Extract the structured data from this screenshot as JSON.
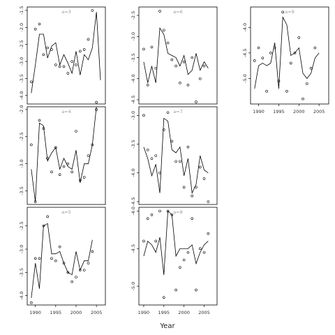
{
  "figure": {
    "xlabel": "Year"
  },
  "colors": {
    "line": "#000000",
    "point": "#000000",
    "frame": "#000000",
    "title": "#999999"
  },
  "chart_data": [
    {
      "type": "line",
      "title": "a=3",
      "xlabel": "",
      "ylabel": "",
      "x": [
        1989,
        1990,
        1991,
        1992,
        1993,
        1994,
        1995,
        1996,
        1997,
        1998,
        1999,
        2000,
        2001,
        2002,
        2003,
        2004,
        2005,
        2006
      ],
      "xlim": [
        1988.0,
        2007.2
      ],
      "ylim": [
        -4.25,
        -1.4
      ],
      "yticks": [
        -1.5,
        -2.0,
        -2.5,
        -3.0,
        -3.5,
        -4.0
      ],
      "xticks": [],
      "series": [
        {
          "values": [
            -3.93,
            -3.1,
            -2.2,
            -2.2,
            -2.9,
            -2.55,
            -2.45,
            -3.1,
            -2.8,
            -3.05,
            -3.35,
            -2.7,
            -3.4,
            -2.8,
            -2.95,
            -2.6,
            -1.55,
            -3.55
          ],
          "points": [
            -3.6,
            -2.05,
            -1.9,
            -2.8,
            -2.6,
            -2.65,
            -3.1,
            -3.15,
            -3.15,
            -3.35,
            -3.0,
            -3.1,
            -2.7,
            -2.65,
            -2.35,
            -1.5,
            -4.2,
            null
          ]
        }
      ]
    },
    {
      "type": "line",
      "title": "a=6",
      "xlabel": "",
      "ylabel": "",
      "x": [
        1990,
        1991,
        1992,
        1993,
        1994,
        1995,
        1996,
        1997,
        1998,
        1999,
        2000,
        2001,
        2002,
        2003,
        2004,
        2005,
        2006,
        2007
      ],
      "xlim": [
        1988.8,
        2008.2
      ],
      "ylim": [
        -4.6,
        -2.3
      ],
      "yticks": [
        -2.5,
        -3.0,
        -3.5,
        -4.0,
        -4.5
      ],
      "xticks": [],
      "series": [
        {
          "values": [
            -3.6,
            -4.1,
            -3.7,
            -4.1,
            -2.8,
            -2.95,
            -3.4,
            -3.45,
            -3.5,
            -3.7,
            -3.45,
            -3.9,
            -3.8,
            -3.4,
            -3.8,
            -3.6,
            -3.75,
            null
          ],
          "points": [
            -3.3,
            -4.15,
            -3.25,
            -3.75,
            -2.4,
            -2.85,
            -3.15,
            -3.55,
            -3.7,
            -4.1,
            -3.6,
            -4.15,
            -3.5,
            -4.55,
            -4.0,
            -3.7,
            null,
            null
          ]
        }
      ]
    },
    {
      "type": "line",
      "title": "a=9",
      "xlabel": "",
      "ylabel": "",
      "x": [
        1989,
        1990,
        1991,
        1992,
        1993,
        1994,
        1995,
        1996,
        1997,
        1998,
        1999,
        2000,
        2001,
        2002,
        2003,
        2004,
        2005,
        2006
      ],
      "xlim": [
        1988.0,
        2007.4
      ],
      "ylim": [
        -5.5,
        -3.6
      ],
      "yticks": [
        -4.0,
        -4.5,
        -5.0
      ],
      "xticks": [
        1990,
        1995,
        2000,
        2005
      ],
      "series": [
        {
          "values": [
            -5.2,
            -4.75,
            -4.7,
            -4.75,
            -4.7,
            -4.3,
            -5.2,
            -3.8,
            -3.95,
            -4.55,
            -4.5,
            -4.4,
            -4.9,
            -5.0,
            -4.9,
            -4.6,
            -4.5,
            null
          ],
          "points": [
            -4.65,
            -4.4,
            -4.6,
            -5.25,
            -4.5,
            -4.4,
            -5.05,
            -3.7,
            -5.25,
            -4.7,
            -4.5,
            -4.2,
            -5.4,
            -5.1,
            -4.8,
            -4.4,
            null,
            null
          ]
        }
      ]
    },
    {
      "type": "line",
      "title": "a=4",
      "xlabel": "",
      "ylabel": "",
      "x": [
        1989,
        1990,
        1991,
        1992,
        1993,
        1994,
        1995,
        1996,
        1997,
        1998,
        1999,
        2000,
        2001,
        2002,
        2003,
        2004,
        2005,
        2006
      ],
      "xlim": [
        1988.0,
        2007.2
      ],
      "ylim": [
        -3.75,
        -1.95
      ],
      "yticks": [
        -2.0,
        -2.5,
        -3.0,
        -3.5
      ],
      "xticks": [],
      "series": [
        {
          "values": [
            -3.1,
            -3.7,
            -2.25,
            -2.3,
            -2.95,
            -2.8,
            -2.7,
            -3.1,
            -2.9,
            -3.05,
            -3.1,
            -2.75,
            -3.35,
            -3.0,
            -3.0,
            -2.65,
            -1.95,
            null
          ],
          "points": [
            -2.65,
            -3.7,
            -2.2,
            -2.35,
            -2.9,
            -3.15,
            -2.7,
            -3.2,
            -3.05,
            -3.0,
            -3.15,
            -2.4,
            -3.3,
            -3.25,
            -2.85,
            -2.65,
            -2.0,
            null
          ]
        }
      ]
    },
    {
      "type": "line",
      "title": "a=7",
      "xlabel": "",
      "ylabel": "",
      "x": [
        1990,
        1991,
        1992,
        1993,
        1994,
        1995,
        1996,
        1997,
        1998,
        1999,
        2000,
        2001,
        2002,
        2003,
        2004,
        2005,
        2006,
        2007
      ],
      "xlim": [
        1988.8,
        2008.2
      ],
      "ylim": [
        -4.55,
        -2.85
      ],
      "yticks": [
        -3.0,
        -3.5,
        -4.0,
        -4.5
      ],
      "xticks": [],
      "series": [
        {
          "values": [
            -3.55,
            -3.75,
            -4.05,
            -3.85,
            -4.35,
            -3.05,
            -3.1,
            -3.6,
            -3.65,
            -3.55,
            -4.05,
            -3.75,
            -4.35,
            -4.2,
            -3.7,
            -3.95,
            -4.0,
            null
          ],
          "points": [
            -3.0,
            -3.6,
            -3.75,
            -3.7,
            -4.0,
            -3.25,
            -2.95,
            -3.45,
            -3.8,
            -3.8,
            -4.25,
            -3.55,
            -4.4,
            -4.25,
            -3.9,
            -4.1,
            -4.5,
            null
          ]
        }
      ]
    },
    {
      "type": "line",
      "title": "a=8",
      "xlabel": "",
      "ylabel": "",
      "x": [
        1990,
        1991,
        1992,
        1993,
        1994,
        1995,
        1996,
        1997,
        1998,
        1999,
        2000,
        2001,
        2002,
        2003,
        2004,
        2005,
        2006,
        2007
      ],
      "xlim": [
        1988.8,
        2008.2
      ],
      "ylim": [
        -5.25,
        -3.95
      ],
      "yticks": [
        -4.0,
        -4.5,
        -5.0
      ],
      "xticks": [
        1990,
        1995,
        2000,
        2005
      ],
      "series": [
        {
          "values": [
            -4.6,
            -4.4,
            -4.45,
            -4.55,
            -4.35,
            -4.85,
            -4.0,
            -4.05,
            -4.6,
            -4.5,
            -4.5,
            -4.5,
            -4.45,
            -4.7,
            -4.55,
            -4.45,
            -4.4,
            null
          ],
          "points": [
            -4.4,
            -4.1,
            -4.05,
            -4.4,
            -4.0,
            -5.15,
            -4.0,
            -4.05,
            -5.05,
            -4.75,
            -4.65,
            -4.55,
            -4.1,
            -5.05,
            -4.5,
            -4.55,
            -4.3,
            null
          ]
        }
      ]
    },
    {
      "type": "line",
      "title": "a=5",
      "xlabel": "",
      "ylabel": "",
      "x": [
        1989,
        1990,
        1991,
        1992,
        1993,
        1994,
        1995,
        1996,
        1997,
        1998,
        1999,
        2000,
        2001,
        2002,
        2003,
        2004,
        2005,
        2006
      ],
      "xlim": [
        1988.0,
        2007.2
      ],
      "ylim": [
        -4.2,
        -2.1
      ],
      "yticks": [
        -2.5,
        -3.0,
        -3.5,
        -4.0
      ],
      "xticks": [
        1990,
        1995,
        2000,
        2005
      ],
      "series": [
        {
          "values": [
            -4.05,
            -3.3,
            -3.85,
            -2.5,
            -2.45,
            -3.1,
            -3.1,
            -3.05,
            -3.3,
            -3.5,
            -3.55,
            -3.05,
            -3.45,
            -3.25,
            -3.25,
            -2.8,
            null,
            null
          ],
          "points": [
            -4.15,
            -3.2,
            -3.2,
            -2.5,
            -2.3,
            -3.2,
            -3.25,
            -2.95,
            -3.3,
            -3.5,
            -3.7,
            -3.6,
            -3.45,
            -3.45,
            -3.3,
            -3.05,
            null,
            null
          ]
        }
      ]
    }
  ]
}
